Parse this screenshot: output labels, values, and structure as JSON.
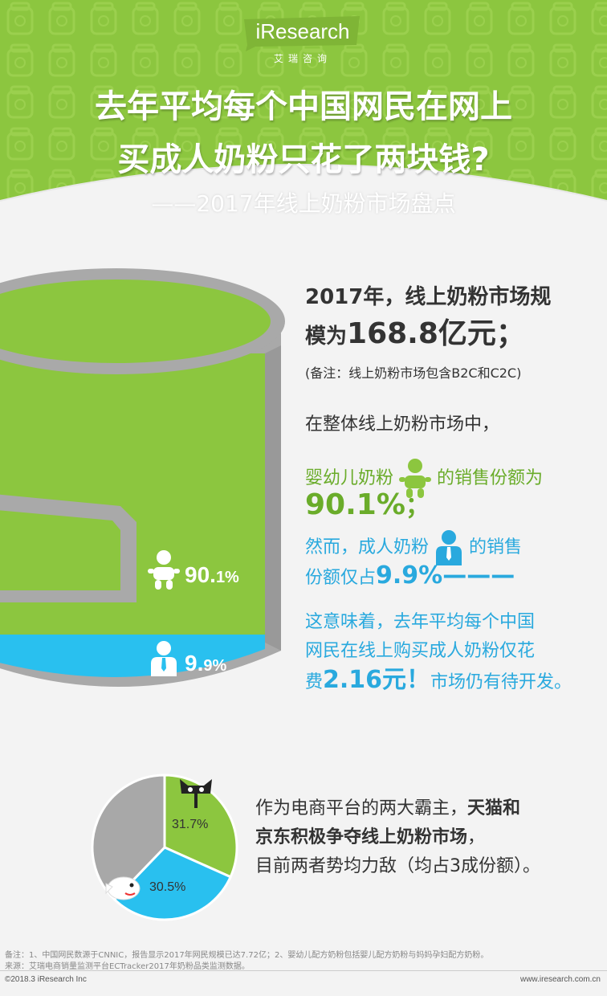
{
  "header": {
    "logo": "iResearch",
    "logo_sub": "艾瑞咨询",
    "title_line1": "去年平均每个中国网民在网上",
    "title_line2": "买成人奶粉只花了两块钱?",
    "subtitle": "——2017年线上奶粉市场盘点"
  },
  "colors": {
    "green": "#8cc63f",
    "blue": "#29c0ef",
    "gray": "#a8a8a8",
    "text_green": "#6aac2a",
    "text_blue": "#29a9de"
  },
  "market": {
    "line1": "2017年，线上奶粉市场规",
    "line2_prefix": "模为",
    "line2_value": "168.8亿元",
    "line2_suffix": "；",
    "note": "(备注：线上奶粉市场包含B2C和C2C)"
  },
  "share": {
    "intro": "在整体线上奶粉市场中，",
    "infant_prefix": "婴幼儿奶粉",
    "infant_suffix": "的销售份额为",
    "infant_value": "90.1%",
    "infant_end": "；",
    "adult_prefix": "然而，成人奶粉",
    "adult_suffix": "的销售",
    "adult_line2": "份额仅占",
    "adult_value": "9.9%",
    "adult_dash": "———",
    "mean_line1": "这意味着，去年平均每个中国",
    "mean_line2": "网民在线上购买成人奶粉仅花",
    "mean_prefix": "费",
    "mean_value": "2.16元！",
    "mean_suffix": "市场仍有待开发。"
  },
  "can_labels": {
    "infant_pct": "90.",
    "infant_pct_small": "1%",
    "adult_pct": "9.",
    "adult_pct_small": "9%"
  },
  "platform": {
    "line1_prefix": "作为电商平台的两大霸主，",
    "line1_bold": "天猫和",
    "line2_bold": "京东积极争夺线上奶粉市场",
    "line2_suffix": "，",
    "line3": "目前两者势均力敌（均占3成份额）。"
  },
  "chart_data": {
    "type": "pie",
    "categories": [
      "天猫",
      "京东",
      "其他"
    ],
    "values": [
      31.7,
      30.5,
      37.8
    ],
    "labels": [
      "31.7%",
      "30.5%",
      ""
    ],
    "colors": [
      "#8cc63f",
      "#29c0ef",
      "#a8a8a8"
    ]
  },
  "footer": {
    "note1": "备注：1、中国网民数源于CNNIC，报告显示2017年网民规模已达7.72亿；2、婴幼儿配方奶粉包括婴儿配方奶粉与妈妈孕妇配方奶粉。",
    "note2": "来源：艾瑞电商销量监测平台ECTracker2017年奶粉品类监测数据。",
    "copyright": "©2018.3 iResearch Inc",
    "site": "www.iresearch.com.cn"
  }
}
